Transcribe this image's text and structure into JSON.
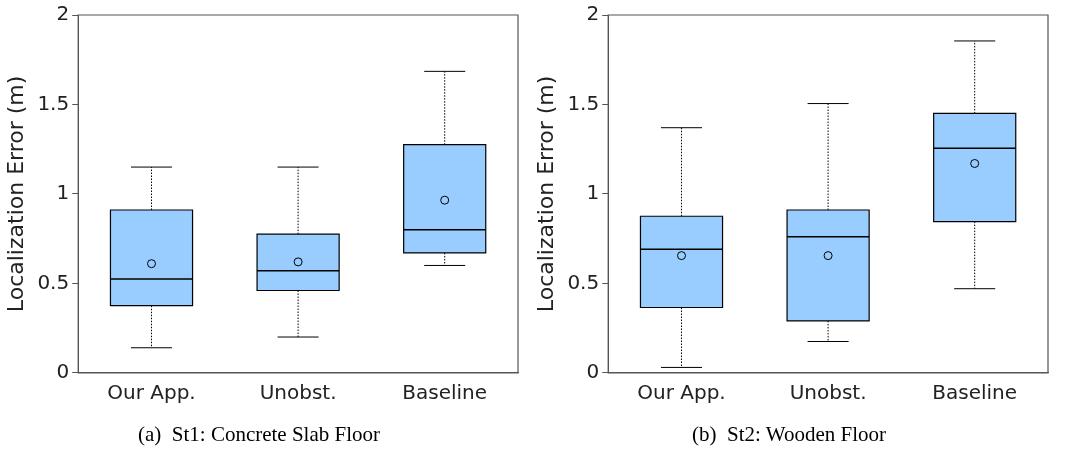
{
  "chart_data": [
    {
      "type": "box",
      "title": "(a)  St1: Concrete Slab Floor",
      "ylabel": "Localization Error (m)",
      "categories": [
        "Our App.",
        "Unobst.",
        "Baseline"
      ],
      "color": "#99ccff",
      "ylim": [
        0,
        2
      ],
      "yticks": [
        0,
        0.5,
        1,
        1.5,
        2
      ],
      "grid": false,
      "boxes": [
        {
          "low": 0.14,
          "q1": 0.375,
          "median": 0.525,
          "q3": 0.91,
          "high": 1.15,
          "mean": 0.61
        },
        {
          "low": 0.2,
          "q1": 0.46,
          "median": 0.57,
          "q3": 0.775,
          "high": 1.15,
          "mean": 0.62
        },
        {
          "low": 0.6,
          "q1": 0.67,
          "median": 0.8,
          "q3": 1.275,
          "high": 1.685,
          "mean": 0.965
        }
      ]
    },
    {
      "type": "box",
      "title": "(b)  St2: Wooden Floor",
      "ylabel": "Localization Error (m)",
      "categories": [
        "Our App.",
        "Unobst.",
        "Baseline"
      ],
      "color": "#99ccff",
      "ylim": [
        0,
        2
      ],
      "yticks": [
        0,
        0.5,
        1,
        1.5,
        2
      ],
      "grid": false,
      "boxes": [
        {
          "low": 0.03,
          "q1": 0.365,
          "median": 0.69,
          "q3": 0.875,
          "high": 1.37,
          "mean": 0.655
        },
        {
          "low": 0.175,
          "q1": 0.29,
          "median": 0.76,
          "q3": 0.91,
          "high": 1.505,
          "mean": 0.655
        },
        {
          "low": 0.47,
          "q1": 0.845,
          "median": 1.255,
          "q3": 1.45,
          "high": 1.855,
          "mean": 1.17
        }
      ]
    }
  ]
}
